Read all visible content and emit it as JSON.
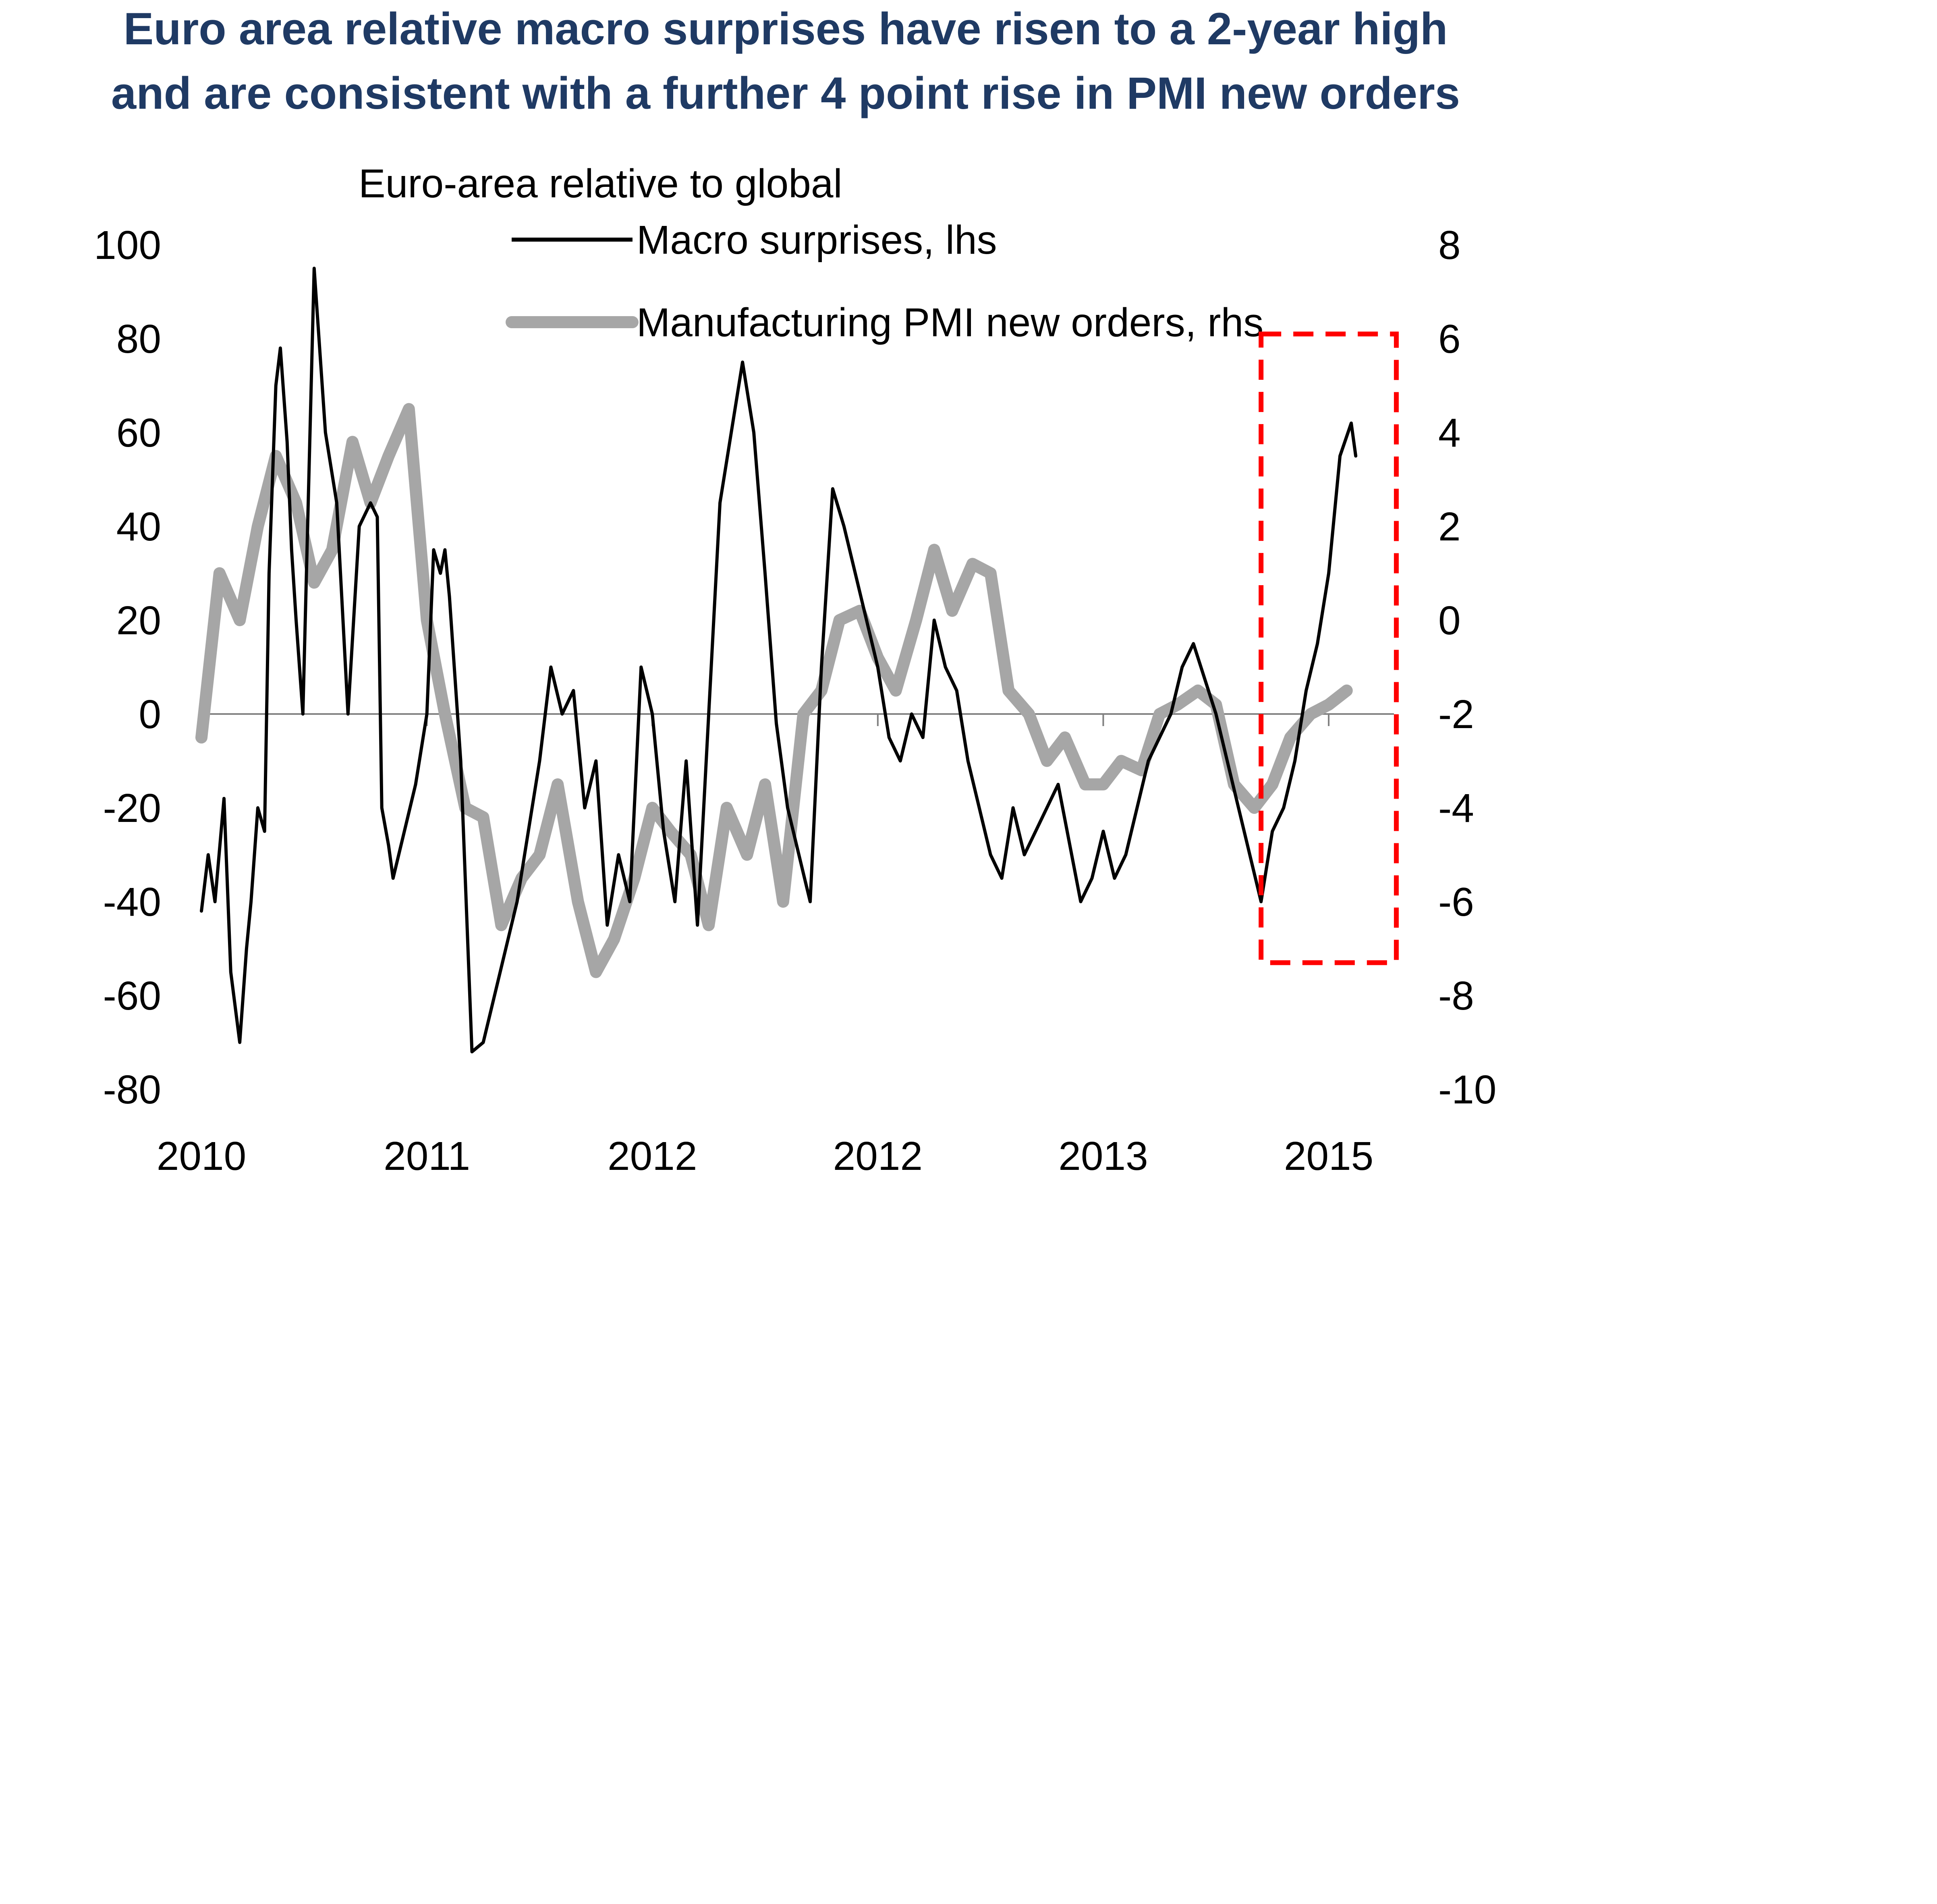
{
  "chart_data": {
    "type": "line",
    "title": "Euro area relative macro surprises have risen to a 2-year high",
    "title_line2": "and are consistent with a further 4 point rise in PMI new orders",
    "subtitle": "Euro-area relative to global",
    "xlabel": "",
    "ylabel_left": "",
    "ylabel_right": "",
    "x_ticks": [
      "2010",
      "2011",
      "2012",
      "2012",
      "2013",
      "2015"
    ],
    "x_range": [
      0,
      5.2
    ],
    "y_left_ticks": [
      "100",
      "80",
      "60",
      "40",
      "20",
      "0",
      "-20",
      "-40",
      "-60",
      "-80"
    ],
    "y_left_range": [
      -80,
      100
    ],
    "y_right_ticks": [
      "8",
      "6",
      "4",
      "2",
      "0",
      "-2",
      "-4",
      "-6",
      "-8",
      "-10"
    ],
    "y_right_range": [
      -10,
      8
    ],
    "grid": false,
    "legend_position": "top-center",
    "zero_line_on": "left",
    "highlight_box": {
      "x_range": [
        4.7,
        5.3
      ],
      "y_left_range": [
        -53,
        81
      ],
      "color": "#ff0000",
      "style": "dashed"
    },
    "series": [
      {
        "name": "Macro surprises, lhs",
        "axis": "left",
        "color": "#000000",
        "x": [
          0.0,
          0.03,
          0.06,
          0.1,
          0.13,
          0.17,
          0.2,
          0.22,
          0.25,
          0.28,
          0.3,
          0.33,
          0.35,
          0.38,
          0.4,
          0.42,
          0.45,
          0.5,
          0.55,
          0.6,
          0.65,
          0.7,
          0.75,
          0.78,
          0.8,
          0.83,
          0.85,
          0.9,
          0.95,
          1.0,
          1.03,
          1.06,
          1.08,
          1.1,
          1.15,
          1.2,
          1.25,
          1.3,
          1.35,
          1.4,
          1.45,
          1.5,
          1.55,
          1.6,
          1.65,
          1.7,
          1.75,
          1.8,
          1.85,
          1.9,
          1.95,
          2.0,
          2.05,
          2.1,
          2.15,
          2.2,
          2.3,
          2.4,
          2.45,
          2.5,
          2.55,
          2.6,
          2.7,
          2.75,
          2.8,
          2.85,
          2.9,
          2.95,
          3.0,
          3.05,
          3.1,
          3.15,
          3.2,
          3.25,
          3.3,
          3.35,
          3.4,
          3.45,
          3.5,
          3.55,
          3.6,
          3.65,
          3.7,
          3.8,
          3.9,
          3.95,
          4.0,
          4.05,
          4.1,
          4.15,
          4.2,
          4.3,
          4.35,
          4.4,
          4.5,
          4.55,
          4.6,
          4.65,
          4.7,
          4.75,
          4.8,
          4.85,
          4.9,
          4.95,
          5.0,
          5.05,
          5.1,
          5.12
        ],
        "values": [
          -42,
          -30,
          -40,
          -18,
          -55,
          -70,
          -50,
          -40,
          -20,
          -25,
          30,
          70,
          78,
          58,
          35,
          20,
          0,
          95,
          60,
          45,
          0,
          40,
          45,
          42,
          -20,
          -28,
          -35,
          -25,
          -15,
          0,
          35,
          30,
          35,
          25,
          -10,
          -72,
          -70,
          -60,
          -50,
          -40,
          -25,
          -10,
          10,
          0,
          5,
          -20,
          -10,
          -45,
          -30,
          -40,
          10,
          0,
          -25,
          -40,
          -10,
          -45,
          45,
          75,
          60,
          30,
          -2,
          -20,
          -40,
          10,
          48,
          40,
          30,
          20,
          10,
          -5,
          -10,
          0,
          -5,
          20,
          10,
          5,
          -10,
          -20,
          -30,
          -35,
          -20,
          -30,
          -25,
          -15,
          -40,
          -35,
          -25,
          -35,
          -30,
          -20,
          -10,
          0,
          10,
          15,
          0,
          -10,
          -20,
          -30,
          -40,
          -25,
          -20,
          -10,
          5,
          15,
          30,
          55,
          62,
          55
        ]
      },
      {
        "name": "Manufacturing PMI new orders, rhs",
        "axis": "right",
        "color": "#a6a6a6",
        "x": [
          0.0,
          0.08,
          0.17,
          0.25,
          0.33,
          0.42,
          0.5,
          0.58,
          0.67,
          0.75,
          0.83,
          0.92,
          1.0,
          1.08,
          1.17,
          1.25,
          1.33,
          1.42,
          1.5,
          1.58,
          1.67,
          1.75,
          1.83,
          1.92,
          2.0,
          2.08,
          2.17,
          2.25,
          2.33,
          2.42,
          2.5,
          2.58,
          2.67,
          2.75,
          2.83,
          2.92,
          3.0,
          3.08,
          3.17,
          3.25,
          3.33,
          3.42,
          3.5,
          3.58,
          3.67,
          3.75,
          3.83,
          3.92,
          4.0,
          4.08,
          4.17,
          4.25,
          4.33,
          4.42,
          4.5,
          4.58,
          4.67,
          4.75,
          4.83,
          4.92,
          5.0,
          5.08
        ],
        "values": [
          -2.5,
          1.0,
          0.0,
          2.0,
          3.5,
          2.5,
          0.8,
          1.5,
          3.8,
          2.5,
          3.5,
          4.5,
          0.0,
          -2.0,
          -4.0,
          -4.2,
          -6.5,
          -5.5,
          -5.0,
          -3.5,
          -6.0,
          -7.5,
          -6.8,
          -5.5,
          -4.0,
          -4.5,
          -5.0,
          -6.5,
          -4.0,
          -5.0,
          -3.5,
          -6.0,
          -2.0,
          -1.5,
          0.0,
          0.2,
          -0.8,
          -1.5,
          0.0,
          1.5,
          0.2,
          1.2,
          1.0,
          -1.5,
          -2.0,
          -3.0,
          -2.5,
          -3.5,
          -3.5,
          -3.0,
          -3.2,
          -2.0,
          -1.8,
          -1.5,
          -1.8,
          -3.5,
          -4.0,
          -3.5,
          -2.5,
          -2.0,
          -1.8,
          -1.5
        ]
      }
    ]
  }
}
